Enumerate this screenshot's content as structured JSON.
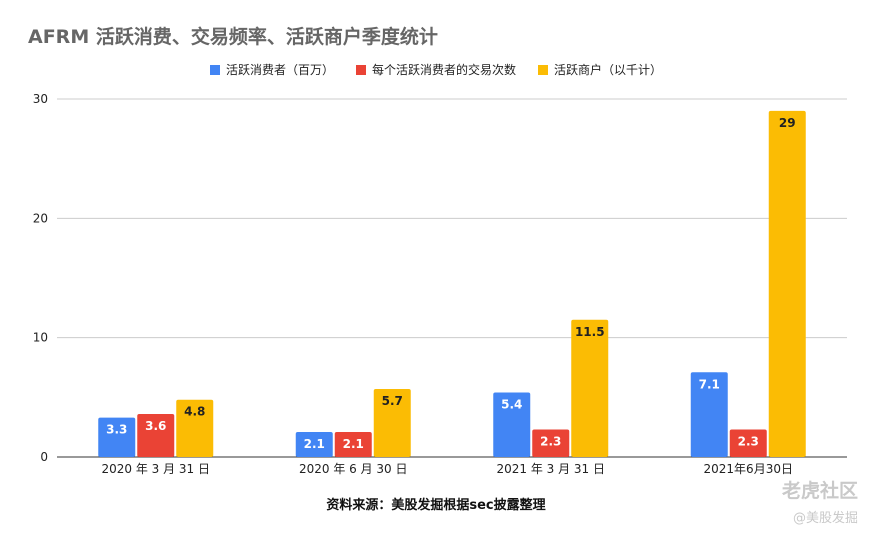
{
  "chart_data": {
    "type": "bar",
    "title": "AFRM 活跃消费、交易频率、活跃商户季度统计",
    "categories": [
      "2020 年 3 月 31 日",
      "2020 年 6 月 30 日",
      "2021 年 3 月 31 日",
      "2021年6月30日"
    ],
    "series": [
      {
        "name": "活跃消费者（百万）",
        "values": [
          3.3,
          2.1,
          5.4,
          7.1
        ],
        "labels": [
          "3.3",
          "2.1",
          "5.4",
          "7.1"
        ],
        "color": "#4285F4"
      },
      {
        "name": "每个活跃消费者的交易次数",
        "values": [
          3.6,
          2.1,
          2.3,
          2.3
        ],
        "labels": [
          "3.6",
          "2.1",
          "2.3",
          "2.3"
        ],
        "color": "#EA4335"
      },
      {
        "name": "活跃商户（以千计）",
        "values": [
          4.8,
          5.7,
          11.5,
          29
        ],
        "labels": [
          "4.8",
          "5.7",
          "11.5",
          "29"
        ],
        "color": "#FBBC04"
      }
    ],
    "ylim": [
      0,
      30
    ],
    "yticks": [
      0,
      10,
      20,
      30
    ],
    "grid": true,
    "legend_position": "top-center",
    "xlabel": "",
    "ylabel": ""
  },
  "source_note": "资料来源：美股发掘根据sec披露整理",
  "watermark": {
    "line1": "老虎社区",
    "line2": "@美股发掘"
  }
}
